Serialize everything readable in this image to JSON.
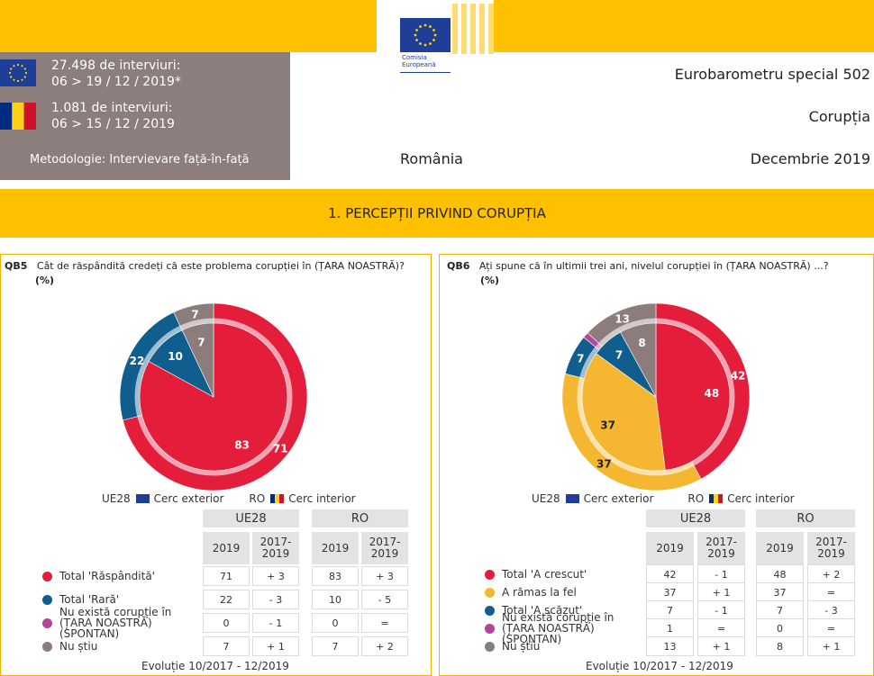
{
  "logo": {
    "line1": "Comisia",
    "line2": "Europeană"
  },
  "info": {
    "eu_interviews": "27.498 de interviuri:",
    "eu_dates": "06 > 19 / 12 / 2019*",
    "ro_interviews": "1.081 de interviuri:",
    "ro_dates": "06 > 15 / 12 / 2019",
    "methodology": "Metodologie: Intervievare față-în-față"
  },
  "header": {
    "survey": "Eurobarometru special 502",
    "topic": "Corupția",
    "country": "România",
    "date": "Decembrie 2019"
  },
  "section_title": "1. PERCEPȚII PRIVIND CORUPȚIA",
  "legend": {
    "eu": "UE28",
    "outer": "Cerc exterior",
    "ro": "RO",
    "inner": "Cerc interior"
  },
  "table_headers": {
    "eu": "UE28",
    "ro": "RO",
    "year": "2019",
    "trend": "2017-\n2019"
  },
  "colors": {
    "red": "#e31d3a",
    "blue": "#0f5e8e",
    "purple": "#b1449b",
    "grey": "#8c7c7b",
    "orange": "#f5b731"
  },
  "chart_data": [
    {
      "type": "pie",
      "question_code": "QB5",
      "question": "Cât de răspândită credeți că este problema corupției în (ȚARA NOASTRĂ)?",
      "unit": "(%)",
      "categories": [
        "Total 'Răspândită'",
        "Total 'Rară'",
        "Nu există corupție în (ȚARA NOASTRĂ) (SPONTAN)",
        "Nu știu"
      ],
      "series": [
        {
          "name": "UE28",
          "values": [
            71,
            22,
            0,
            7
          ]
        },
        {
          "name": "RO",
          "values": [
            83,
            10,
            0,
            7
          ]
        }
      ],
      "eu_change": [
        "+ 3",
        "- 3",
        "- 1",
        "+ 1"
      ],
      "ro_change": [
        "+ 3",
        "- 5",
        "=",
        "+ 2"
      ],
      "evolution": "Evoluție 10/2017 - 12/2019"
    },
    {
      "type": "pie",
      "question_code": "QB6",
      "question": "Ați spune că în ultimii trei ani, nivelul corupției în (ȚARA NOASTRĂ) ...?",
      "unit": "(%)",
      "categories": [
        "Total 'A crescut'",
        "A rămas la fel",
        "Total 'A scăzut'",
        "Nu există corupție în (ȚARA NOASTRĂ) (SPONTAN)",
        "Nu știu"
      ],
      "series": [
        {
          "name": "UE28",
          "values": [
            42,
            37,
            7,
            1,
            13
          ]
        },
        {
          "name": "RO",
          "values": [
            48,
            37,
            7,
            0,
            8
          ]
        }
      ],
      "eu_change": [
        "- 1",
        "+ 1",
        "- 1",
        "=",
        "+ 1"
      ],
      "ro_change": [
        "+ 2",
        "=",
        "- 3",
        "=",
        "+ 1"
      ],
      "evolution": "Evoluție 10/2017 - 12/2019"
    }
  ]
}
